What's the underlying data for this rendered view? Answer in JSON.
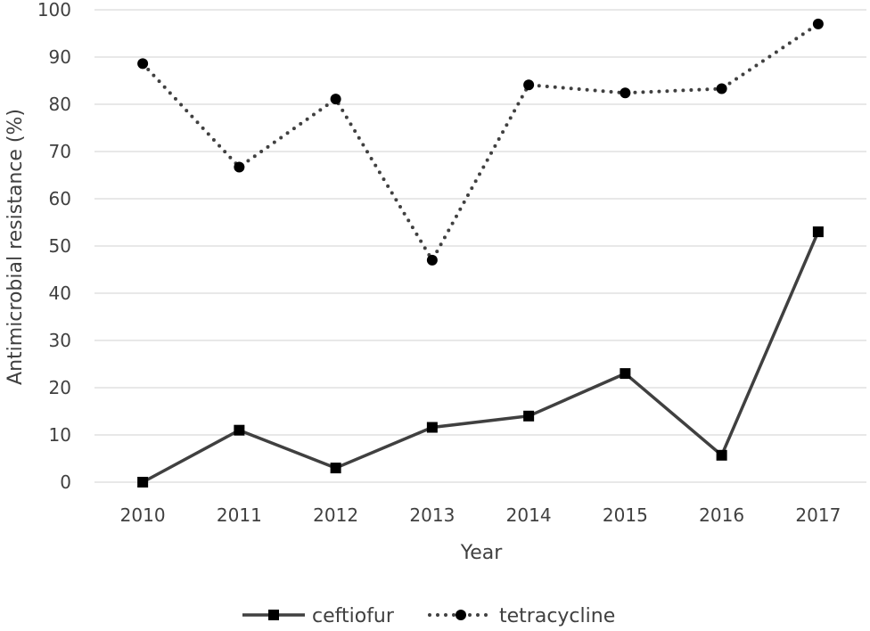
{
  "chart_data": {
    "type": "line",
    "categories": [
      "2010",
      "2011",
      "2012",
      "2013",
      "2014",
      "2015",
      "2016",
      "2017"
    ],
    "xlabel": "Year",
    "ylabel": "Antimicrobial resistance (%)",
    "ylim": [
      0,
      100
    ],
    "yticks": [
      0,
      10,
      20,
      30,
      40,
      50,
      60,
      70,
      80,
      90,
      100
    ],
    "grid": true,
    "legend_position": "bottom",
    "series": [
      {
        "name": "ceftiofur",
        "values": [
          0,
          11,
          3,
          11.6,
          14,
          23,
          5.7,
          53
        ],
        "color": "#404040",
        "line_style": "solid",
        "marker": "square"
      },
      {
        "name": "tetracycline",
        "values": [
          88.6,
          66.7,
          81.1,
          47,
          84.1,
          82.4,
          83.3,
          97
        ],
        "color": "#404040",
        "line_style": "dotted",
        "marker": "circle"
      }
    ]
  }
}
